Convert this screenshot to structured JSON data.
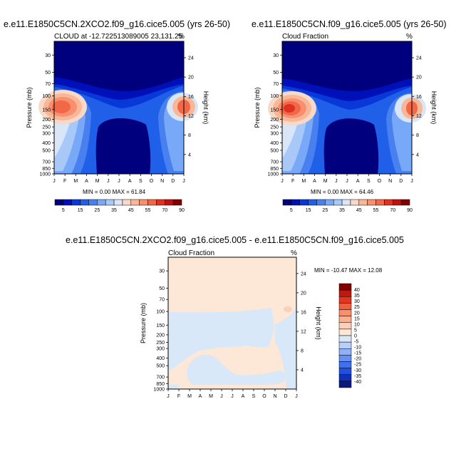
{
  "colors": {
    "abs_scale": [
      "#00007f",
      "#0010b8",
      "#0838d8",
      "#2060e8",
      "#4880f0",
      "#78a8f8",
      "#a8c8f8",
      "#d8e6f8",
      "#f8d8c8",
      "#f8b898",
      "#f89070",
      "#f06848",
      "#e03020",
      "#c01010",
      "#800000"
    ],
    "diff_scale": [
      "#0a1a7a",
      "#1030b8",
      "#2050e0",
      "#4070f0",
      "#6890f0",
      "#90b0f8",
      "#b8d0f8",
      "#d8e8f8",
      "#fde8d8",
      "#fcd0b8",
      "#f8b090",
      "#f89070",
      "#f06040",
      "#e03820",
      "#c01810",
      "#800000"
    ],
    "frame": "#000000"
  },
  "panel1": {
    "title": "e.e11.E1850C5CN.2XCO2.f09_g16.cice5.005 (yrs 26-50)",
    "left_label": "CLOUD at -12.722513089005 23,131.25",
    "right_label": "%",
    "minmax": "MIN =  0.00 MAX =  61.84"
  },
  "panel2": {
    "title": "e.e11.E1850C5CN.f09_g16.cice5.005 (yrs 26-50)",
    "left_label": "Cloud Fraction",
    "right_label": "%",
    "minmax": "MIN =  0.00 MAX =  64.46"
  },
  "panel3": {
    "title": "e.e11.E1850C5CN.2XCO2.f09_g16.cice5.005 - e.e11.E1850C5CN.f09_g16.cice5.005",
    "left_label": "Cloud Fraction",
    "right_label": "%",
    "minmax": "MIN = -10.47 MAX =  12.08"
  },
  "chart_data": [
    {
      "type": "contour",
      "title": "e.e11.E1850C5CN.2XCO2.f09_g16.cice5.005 (yrs 26-50)",
      "subtitle": "CLOUD at -12.722513089005 23,131.25",
      "units": "%",
      "ylabel": "Pressure (mb)",
      "ylabel_right": "Height (km)",
      "x": [
        "J",
        "F",
        "M",
        "A",
        "M",
        "J",
        "J",
        "A",
        "S",
        "O",
        "N",
        "D",
        "J"
      ],
      "y_ticks": [
        30,
        50,
        70,
        100,
        150,
        200,
        250,
        300,
        400,
        500,
        700,
        850,
        1000
      ],
      "y_right_ticks": [
        4,
        8,
        12,
        16,
        20,
        24
      ],
      "ylim": [
        1000,
        20
      ],
      "min": 0.0,
      "max": 61.84,
      "colorbar_levels": [
        5,
        15,
        25,
        35,
        45,
        55,
        70,
        90
      ]
    },
    {
      "type": "contour",
      "title": "e.e11.E1850C5CN.f09_g16.cice5.005 (yrs 26-50)",
      "subtitle": "Cloud Fraction",
      "units": "%",
      "ylabel": "Pressure (mb)",
      "ylabel_right": "Height (km)",
      "x": [
        "J",
        "F",
        "M",
        "A",
        "M",
        "J",
        "J",
        "A",
        "S",
        "O",
        "N",
        "D",
        "J"
      ],
      "y_ticks": [
        30,
        50,
        70,
        100,
        150,
        200,
        250,
        300,
        400,
        500,
        700,
        850,
        1000
      ],
      "y_right_ticks": [
        4,
        8,
        12,
        16,
        20,
        24
      ],
      "ylim": [
        1000,
        20
      ],
      "min": 0.0,
      "max": 64.46,
      "colorbar_levels": [
        5,
        15,
        25,
        35,
        45,
        55,
        70,
        90
      ]
    },
    {
      "type": "contour",
      "title": "e.e11.E1850C5CN.2XCO2.f09_g16.cice5.005 - e.e11.E1850C5CN.f09_g16.cice5.005",
      "subtitle": "Cloud Fraction",
      "units": "%",
      "ylabel": "Pressure (mb)",
      "ylabel_right": "Height (km)",
      "x": [
        "J",
        "F",
        "M",
        "A",
        "M",
        "J",
        "J",
        "A",
        "S",
        "O",
        "N",
        "D",
        "J"
      ],
      "y_ticks": [
        30,
        50,
        70,
        100,
        150,
        200,
        250,
        300,
        400,
        500,
        700,
        850,
        1000
      ],
      "y_right_ticks": [
        4,
        8,
        12,
        16,
        20,
        24
      ],
      "ylim": [
        1000,
        20
      ],
      "min": -10.47,
      "max": 12.08,
      "colorbar_levels": [
        40,
        35,
        30,
        25,
        20,
        15,
        10,
        5,
        0,
        -5,
        -10,
        -15,
        -20,
        -25,
        -30,
        -35,
        -40
      ]
    }
  ]
}
